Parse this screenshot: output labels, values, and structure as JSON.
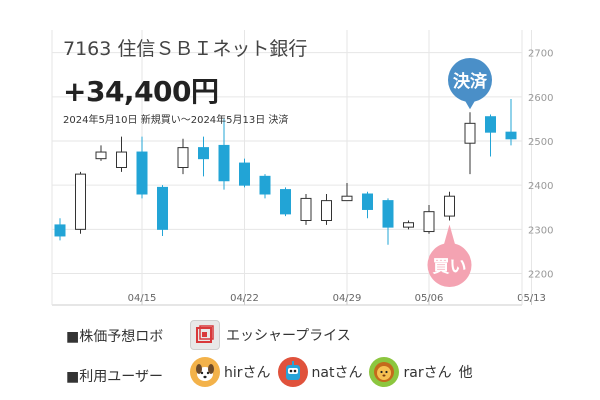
{
  "header": {
    "title": "7163 住信ＳＢＩネット銀行",
    "profit": "+34,400円",
    "period": "2024年5月10日 新規買い〜2024年5月13日 決済"
  },
  "markers": {
    "buy_label": "買い",
    "sell_label": "決済",
    "buy_color": "#f4a3b2",
    "sell_color": "#4a8fc8"
  },
  "footer": {
    "robot_label": "■株価予想ロボ",
    "robot_name": "エッシャープライス",
    "robot_icon": "robot-logo-icon",
    "users_label": "■利用ユーザー",
    "users": [
      {
        "name": "hirさん",
        "icon": "dog-avatar-icon",
        "color": "#f3b24a"
      },
      {
        "name": "natさん",
        "icon": "robot-avatar-icon",
        "color": "#e0523c"
      },
      {
        "name": "rarさん",
        "icon": "lion-avatar-icon",
        "color": "#8cc63f"
      }
    ],
    "users_suffix": "他"
  },
  "chart_data": {
    "type": "candlestick",
    "up_color": "#ffffff",
    "down_color": "#22a4d6",
    "ylim": [
      2140,
      2740
    ],
    "yticks": [
      2200,
      2300,
      2400,
      2500,
      2600,
      2700
    ],
    "xtick_labels": [
      {
        "index": 4,
        "label": "04/15"
      },
      {
        "index": 9,
        "label": "04/22"
      },
      {
        "index": 14,
        "label": "04/29"
      },
      {
        "index": 18,
        "label": "05/06"
      },
      {
        "index": 23,
        "label": "05/13"
      }
    ],
    "candles": [
      {
        "o": 2310,
        "h": 2325,
        "c": 2285,
        "l": 2275
      },
      {
        "o": 2300,
        "h": 2430,
        "c": 2425,
        "l": 2290
      },
      {
        "o": 2460,
        "h": 2490,
        "c": 2475,
        "l": 2455
      },
      {
        "o": 2440,
        "h": 2510,
        "c": 2475,
        "l": 2430
      },
      {
        "o": 2475,
        "h": 2510,
        "c": 2380,
        "l": 2370
      },
      {
        "o": 2395,
        "h": 2400,
        "c": 2300,
        "l": 2285
      },
      {
        "o": 2440,
        "h": 2505,
        "c": 2485,
        "l": 2425
      },
      {
        "o": 2485,
        "h": 2510,
        "c": 2460,
        "l": 2420
      },
      {
        "o": 2490,
        "h": 2550,
        "c": 2410,
        "l": 2390
      },
      {
        "o": 2450,
        "h": 2460,
        "c": 2400,
        "l": 2395
      },
      {
        "o": 2420,
        "h": 2425,
        "c": 2380,
        "l": 2370
      },
      {
        "o": 2390,
        "h": 2395,
        "c": 2335,
        "l": 2330
      },
      {
        "o": 2320,
        "h": 2380,
        "c": 2370,
        "l": 2310
      },
      {
        "o": 2320,
        "h": 2380,
        "c": 2365,
        "l": 2310
      },
      {
        "o": 2365,
        "h": 2405,
        "c": 2375,
        "l": 2365
      },
      {
        "o": 2380,
        "h": 2385,
        "c": 2345,
        "l": 2325
      },
      {
        "o": 2365,
        "h": 2370,
        "c": 2305,
        "l": 2265
      },
      {
        "o": 2305,
        "h": 2320,
        "c": 2315,
        "l": 2300
      },
      {
        "o": 2295,
        "h": 2355,
        "c": 2340,
        "l": 2290
      },
      {
        "o": 2330,
        "h": 2385,
        "c": 2375,
        "l": 2320
      },
      {
        "o": 2495,
        "h": 2565,
        "c": 2540,
        "l": 2425
      },
      {
        "o": 2555,
        "h": 2560,
        "c": 2520,
        "l": 2465
      },
      {
        "o": 2520,
        "h": 2595,
        "c": 2505,
        "l": 2490
      }
    ],
    "buy_index": 19,
    "sell_index": 20
  }
}
